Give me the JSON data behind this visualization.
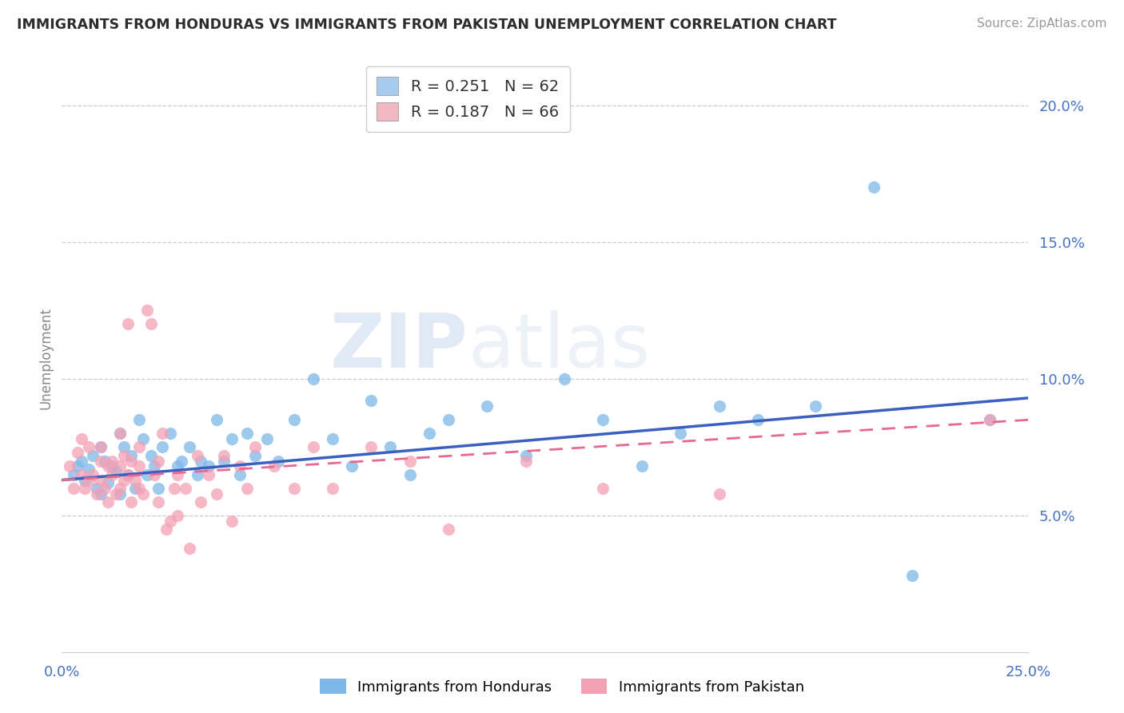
{
  "title": "IMMIGRANTS FROM HONDURAS VS IMMIGRANTS FROM PAKISTAN UNEMPLOYMENT CORRELATION CHART",
  "source": "Source: ZipAtlas.com",
  "ylabel": "Unemployment",
  "xlim": [
    0.0,
    0.25
  ],
  "ylim": [
    0.0,
    0.215
  ],
  "ytick_values": [
    0.05,
    0.1,
    0.15,
    0.2
  ],
  "xtick_values": [
    0.0,
    0.05,
    0.1,
    0.15,
    0.2,
    0.25
  ],
  "R_honduras": 0.251,
  "N_honduras": 62,
  "R_pakistan": 0.187,
  "N_pakistan": 66,
  "color_honduras": "#7DB8E8",
  "color_pakistan": "#F4A0B4",
  "trend_color_honduras": "#3B5FC0",
  "trend_color_pakistan": "#E86890",
  "watermark_zip": "ZIP",
  "watermark_atlas": "atlas",
  "honduras_x": [
    0.003,
    0.004,
    0.005,
    0.006,
    0.007,
    0.008,
    0.009,
    0.01,
    0.01,
    0.011,
    0.012,
    0.013,
    0.014,
    0.015,
    0.015,
    0.016,
    0.017,
    0.018,
    0.019,
    0.02,
    0.021,
    0.022,
    0.023,
    0.024,
    0.025,
    0.026,
    0.028,
    0.03,
    0.031,
    0.033,
    0.035,
    0.036,
    0.038,
    0.04,
    0.042,
    0.044,
    0.046,
    0.048,
    0.05,
    0.053,
    0.056,
    0.06,
    0.065,
    0.07,
    0.075,
    0.08,
    0.085,
    0.09,
    0.095,
    0.1,
    0.11,
    0.12,
    0.13,
    0.14,
    0.15,
    0.16,
    0.17,
    0.18,
    0.195,
    0.21,
    0.22,
    0.24
  ],
  "honduras_y": [
    0.065,
    0.068,
    0.07,
    0.063,
    0.067,
    0.072,
    0.06,
    0.075,
    0.058,
    0.07,
    0.062,
    0.068,
    0.066,
    0.08,
    0.058,
    0.075,
    0.065,
    0.072,
    0.06,
    0.085,
    0.078,
    0.065,
    0.072,
    0.068,
    0.06,
    0.075,
    0.08,
    0.068,
    0.07,
    0.075,
    0.065,
    0.07,
    0.068,
    0.085,
    0.07,
    0.078,
    0.065,
    0.08,
    0.072,
    0.078,
    0.07,
    0.085,
    0.1,
    0.078,
    0.068,
    0.092,
    0.075,
    0.065,
    0.08,
    0.085,
    0.09,
    0.072,
    0.1,
    0.085,
    0.068,
    0.08,
    0.09,
    0.085,
    0.09,
    0.17,
    0.028,
    0.085
  ],
  "pakistan_x": [
    0.002,
    0.003,
    0.004,
    0.005,
    0.005,
    0.006,
    0.007,
    0.007,
    0.008,
    0.009,
    0.01,
    0.01,
    0.01,
    0.011,
    0.012,
    0.012,
    0.013,
    0.013,
    0.014,
    0.015,
    0.015,
    0.015,
    0.016,
    0.016,
    0.017,
    0.017,
    0.018,
    0.018,
    0.019,
    0.02,
    0.02,
    0.02,
    0.021,
    0.022,
    0.023,
    0.024,
    0.025,
    0.025,
    0.026,
    0.027,
    0.028,
    0.029,
    0.03,
    0.03,
    0.032,
    0.033,
    0.035,
    0.036,
    0.038,
    0.04,
    0.042,
    0.044,
    0.046,
    0.048,
    0.05,
    0.055,
    0.06,
    0.065,
    0.07,
    0.08,
    0.09,
    0.1,
    0.12,
    0.14,
    0.17,
    0.24
  ],
  "pakistan_y": [
    0.068,
    0.06,
    0.073,
    0.065,
    0.078,
    0.06,
    0.063,
    0.075,
    0.065,
    0.058,
    0.07,
    0.075,
    0.063,
    0.06,
    0.068,
    0.055,
    0.065,
    0.07,
    0.058,
    0.08,
    0.06,
    0.068,
    0.072,
    0.063,
    0.12,
    0.065,
    0.07,
    0.055,
    0.063,
    0.06,
    0.068,
    0.075,
    0.058,
    0.125,
    0.12,
    0.065,
    0.07,
    0.055,
    0.08,
    0.045,
    0.048,
    0.06,
    0.05,
    0.065,
    0.06,
    0.038,
    0.072,
    0.055,
    0.065,
    0.058,
    0.072,
    0.048,
    0.068,
    0.06,
    0.075,
    0.068,
    0.06,
    0.075,
    0.06,
    0.075,
    0.07,
    0.045,
    0.07,
    0.06,
    0.058,
    0.085
  ]
}
